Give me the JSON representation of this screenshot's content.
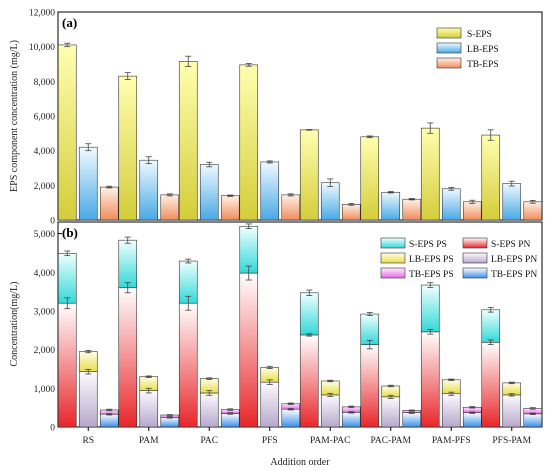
{
  "chart_data": [
    {
      "panel": "(a)",
      "type": "bar",
      "categories": [
        "RS",
        "PAM",
        "PAC",
        "PFS",
        "PAM-PAC",
        "PAC-PAM",
        "PAM-PFS",
        "PFS-PAM"
      ],
      "ylabel": "EPS component concentration (mg/L)",
      "ylim": [
        0,
        12000
      ],
      "yticks": [
        0,
        2000,
        4000,
        6000,
        8000,
        10000,
        12000
      ],
      "legend_position": "top-right",
      "series": [
        {
          "name": "S-EPS",
          "color_top": "#ffffb0",
          "color_bottom": "#d4cd3a",
          "values": [
            10100,
            8300,
            9150,
            8950,
            5200,
            4800,
            5300,
            4900
          ],
          "errors": [
            100,
            200,
            300,
            80,
            20,
            50,
            300,
            300
          ]
        },
        {
          "name": "LB-EPS",
          "color_top": "#f0faff",
          "color_bottom": "#49a9e6",
          "values": [
            4200,
            3450,
            3200,
            3350,
            2150,
            1600,
            1800,
            2100
          ],
          "errors": [
            200,
            200,
            130,
            60,
            220,
            40,
            80,
            140
          ]
        },
        {
          "name": "TB-EPS",
          "color_top": "#fff1e8",
          "color_bottom": "#f08d5a",
          "values": [
            1900,
            1450,
            1400,
            1450,
            900,
            1200,
            1050,
            1050
          ],
          "errors": [
            50,
            60,
            40,
            60,
            50,
            40,
            90,
            80
          ]
        }
      ]
    },
    {
      "panel": "(b)",
      "type": "bar",
      "stacked": true,
      "categories": [
        "RS",
        "PAM",
        "PAC",
        "PFS",
        "PAM-PAC",
        "PAC-PAM",
        "PAM-PFS",
        "PFS-PAM"
      ],
      "xlabel": "Addition order",
      "ylabel": "Concentration(mg/L)",
      "ylim": [
        0,
        5300
      ],
      "yticks": [
        0,
        1000,
        2000,
        3000,
        4000,
        5000
      ],
      "legend_position": "top-right",
      "groups": [
        {
          "name": "S-EPS",
          "pn": {
            "name": "S-EPS PN",
            "color_top": "#ffffff",
            "color_bottom": "#e8262a",
            "values": [
              3200,
              3600,
              3200,
              3980,
              2380,
              2130,
              2460,
              2190
            ],
            "errors": [
              140,
              130,
              180,
              180,
              30,
              110,
              60,
              60
            ]
          },
          "ps": {
            "name": "S-EPS PS",
            "color_top": "#f2ffff",
            "color_bottom": "#33d8d8",
            "values": [
              1290,
              1230,
              1090,
              1210,
              1090,
              790,
              1210,
              840
            ],
            "errors": [
              60,
              80,
              50,
              60,
              70,
              40,
              60,
              60
            ]
          }
        },
        {
          "name": "LB-EPS",
          "pn": {
            "name": "LB-EPS PN",
            "color_top": "#fdfbff",
            "color_bottom": "#b7a8cc",
            "values": [
              1430,
              940,
              880,
              1160,
              830,
              780,
              860,
              830
            ],
            "errors": [
              60,
              60,
              60,
              60,
              40,
              40,
              40,
              30
            ]
          },
          "ps": {
            "name": "LB-EPS PS",
            "color_top": "#ffffe8",
            "color_bottom": "#e6dd4a",
            "values": [
              520,
              360,
              370,
              380,
              360,
              280,
              360,
              310
            ],
            "errors": [
              30,
              20,
              20,
              30,
              20,
              20,
              20,
              20
            ]
          }
        },
        {
          "name": "TB-EPS",
          "pn": {
            "name": "TB-EPS PN",
            "color_top": "#ffffff",
            "color_bottom": "#3d8fe8",
            "values": [
              330,
              250,
              350,
              460,
              380,
              370,
              370,
              340
            ],
            "errors": [
              20,
              20,
              20,
              20,
              20,
              20,
              20,
              20
            ]
          },
          "ps": {
            "name": "TB-EPS PS",
            "color_top": "#fff0ff",
            "color_bottom": "#e868e8",
            "values": [
              110,
              60,
              100,
              140,
              140,
              60,
              140,
              140
            ],
            "errors": [
              20,
              10,
              20,
              20,
              20,
              10,
              20,
              20
            ]
          }
        }
      ],
      "legend_order": [
        "S-EPS PS",
        "S-EPS PN",
        "LB-EPS PS",
        "LB-EPS PN",
        "TB-EPS PS",
        "TB-EPS PN"
      ]
    }
  ]
}
